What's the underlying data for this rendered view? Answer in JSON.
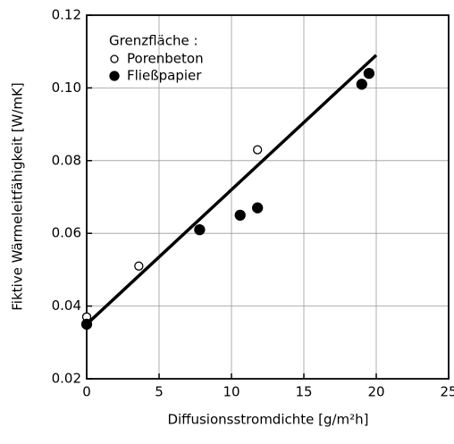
{
  "chart_data": {
    "type": "scatter",
    "xlabel": "Diffusionsstromdichte  [g/m²h]",
    "ylabel": "Fiktive Wärmeleitfähigkeit [W/mK]",
    "legend_title": "Grenzfläche :",
    "legend": "upper left",
    "grid": true,
    "xlim": [
      0,
      25
    ],
    "xticks": [
      0,
      5,
      10,
      15,
      20,
      25
    ],
    "ylim": [
      0.02,
      0.12
    ],
    "yticks": [
      0.02,
      0.04,
      0.06,
      0.08,
      {
        "value": 0.1,
        "label": "0.10"
      },
      0.12
    ],
    "series": [
      {
        "name": "Porenbeton",
        "color": "#000000",
        "marker": "open",
        "x": [
          0,
          3.6,
          11.8
        ],
        "values": [
          0.037,
          0.051,
          0.083
        ]
      },
      {
        "name": "Fließpapier",
        "color": "#000000",
        "marker": "filled",
        "x": [
          0,
          7.8,
          10.6,
          11.8,
          19,
          19.5
        ],
        "values": [
          0.035,
          0.061,
          0.065,
          0.067,
          0.101,
          0.104
        ]
      }
    ],
    "fit": {
      "color": "#000000",
      "x": [
        0,
        20
      ],
      "y": [
        0.035,
        0.109
      ]
    }
  }
}
